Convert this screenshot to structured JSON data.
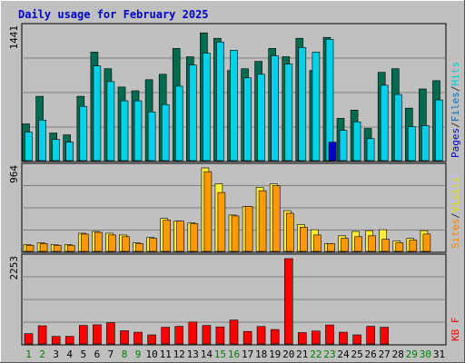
{
  "chart_data": {
    "type": "bar",
    "title": "Daily usage for February 2025",
    "x": [
      "1",
      "2",
      "3",
      "4",
      "5",
      "6",
      "7",
      "8",
      "9",
      "10",
      "11",
      "12",
      "13",
      "14",
      "15",
      "16",
      "17",
      "18",
      "19",
      "20",
      "21",
      "22",
      "23",
      "24",
      "25",
      "26",
      "27",
      "28",
      "29",
      "30",
      "31"
    ],
    "weekend_days": [
      "1",
      "2",
      "8",
      "9",
      "15",
      "16",
      "22",
      "23",
      "29",
      "30"
    ],
    "panels": [
      {
        "id": "hits",
        "max_label": "1441",
        "ylim": [
          0,
          1441
        ],
        "legend": [
          {
            "text": "Pages",
            "color": "#0000cc"
          },
          {
            "text": "/",
            "color": "#333333"
          },
          {
            "text": "Files",
            "color": "#0070c0"
          },
          {
            "text": "/",
            "color": "#333333"
          },
          {
            "text": "Hits",
            "color": "#00d0d0"
          }
        ],
        "series": [
          {
            "name": "Hits",
            "color": "#006b4f",
            "values": [
              400,
              700,
              300,
              280,
              700,
              1180,
              1000,
              800,
              760,
              880,
              940,
              1220,
              1130,
              1390,
              1330,
              980,
              1000,
              1080,
              1220,
              1130,
              1330,
              980,
              1340,
              460,
              550,
              350,
              960,
              1000,
              570,
              780,
              870
            ]
          },
          {
            "name": "Files",
            "color": "#00d0e8",
            "values": [
              310,
              440,
              230,
              200,
              590,
              1030,
              860,
              650,
              650,
              530,
              610,
              810,
              1040,
              1170,
              1290,
              1200,
              900,
              940,
              1140,
              1050,
              1230,
              1180,
              1320,
              330,
              420,
              240,
              820,
              720,
              370,
              380,
              660
            ]
          },
          {
            "name": "Pages",
            "color": "#0000cc",
            "values": [
              0,
              0,
              0,
              0,
              0,
              0,
              0,
              0,
              0,
              0,
              0,
              0,
              0,
              0,
              0,
              0,
              0,
              0,
              0,
              0,
              0,
              0,
              200,
              0,
              0,
              0,
              0,
              0,
              0,
              0,
              0
            ]
          }
        ]
      },
      {
        "id": "visits",
        "max_label": "964",
        "ylim": [
          0,
          964
        ],
        "legend": [
          {
            "text": "Sites",
            "color": "#ff8000"
          },
          {
            "text": "/",
            "color": "#333333"
          },
          {
            "text": "Visits",
            "color": "#e0e000"
          }
        ],
        "series": [
          {
            "name": "Visits",
            "color": "#ffee33",
            "values": [
              80,
              100,
              80,
              80,
              210,
              230,
              210,
              190,
              100,
              160,
              380,
              350,
              330,
              964,
              780,
              420,
              520,
              740,
              780,
              470,
              310,
              250,
              90,
              180,
              230,
              240,
              250,
              120,
              150,
              240,
              0
            ]
          },
          {
            "name": "Sites",
            "color": "#ff9900",
            "values": [
              70,
              90,
              70,
              70,
              200,
              220,
              190,
              170,
              90,
              150,
              360,
              350,
              320,
              920,
              680,
              410,
              520,
              700,
              760,
              440,
              280,
              190,
              90,
              150,
              170,
              180,
              140,
              100,
              130,
              200,
              0
            ]
          }
        ]
      },
      {
        "id": "kbytes",
        "max_label": "2253",
        "ylim": [
          0,
          2253
        ],
        "legend": [
          {
            "text": "KB F",
            "color": "#ff0000"
          }
        ],
        "series": [
          {
            "name": "KB F",
            "color": "#ff0000",
            "values": [
              270,
              480,
              200,
              200,
              490,
              505,
              560,
              350,
              310,
              240,
              440,
              465,
              580,
              490,
              450,
              630,
              330,
              460,
              380,
              2253,
              300,
              340,
              500,
              310,
              240,
              465,
              440,
              0,
              0,
              0,
              0
            ]
          }
        ]
      }
    ]
  }
}
